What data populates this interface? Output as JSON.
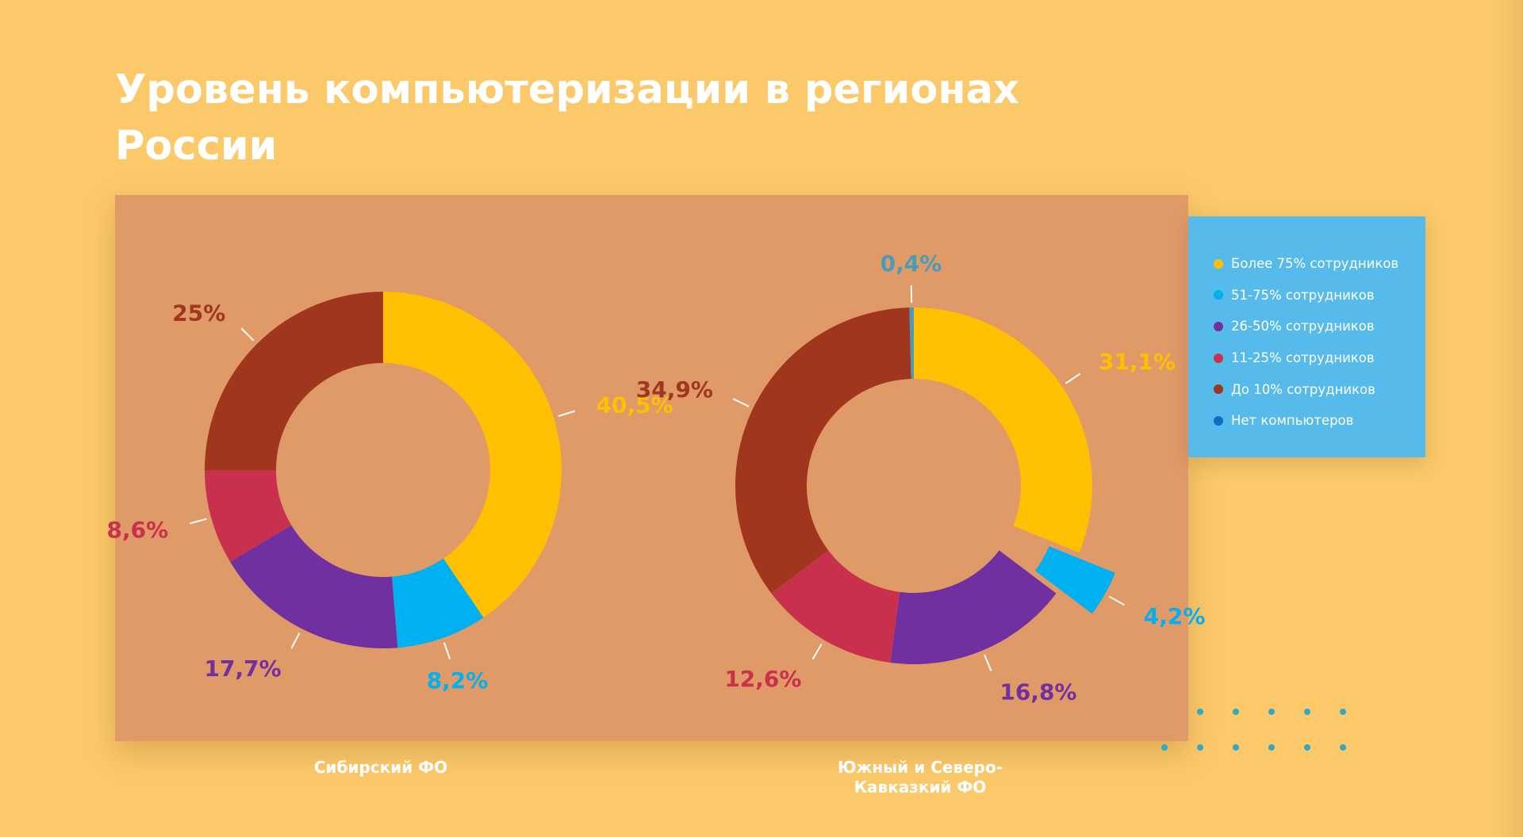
{
  "title": "Уровень компьютеризации в регионах России",
  "colors": {
    "background": "#fbc96a",
    "panel": "#e09a67",
    "legend_panel": "#56bbea"
  },
  "legend": [
    {
      "label": "Более 75% сотрудников",
      "color": "#fec000"
    },
    {
      "label": "51-75% сотрудников",
      "color": "#00b0f0"
    },
    {
      "label": "26-50% сотрудников",
      "color": "#7030a0"
    },
    {
      "label": "11-25% сотрудников",
      "color": "#c9304e"
    },
    {
      "label": "До 10% сотрудников",
      "color": "#a0361e"
    },
    {
      "label": "Нет компьютеров",
      "color": "#0f6fc6"
    }
  ],
  "chart_data": [
    {
      "type": "pie",
      "title": "Сибирский ФО",
      "categories": [
        "Более 75% сотрудников",
        "51-75% сотрудников",
        "26-50% сотрудников",
        "11-25% сотрудников",
        "До 10% сотрудников"
      ],
      "values": [
        40.5,
        8.2,
        17.7,
        8.6,
        25
      ],
      "labels": [
        "40,5%",
        "8,2%",
        "17,7%",
        "8,6%",
        "25%"
      ],
      "colors": [
        "#fec000",
        "#00b0f0",
        "#7030a0",
        "#c9304e",
        "#a0361e"
      ],
      "donut": true
    },
    {
      "type": "pie",
      "title": "Южный и Северо-Кавказкий ФО",
      "categories": [
        "Более 75% сотрудников",
        "51-75% сотрудников",
        "26-50% сотрудников",
        "11-25% сотрудников",
        "До 10% сотрудников",
        "Нет компьютеров"
      ],
      "values": [
        31.1,
        4.2,
        16.8,
        12.6,
        34.9,
        0.4
      ],
      "labels": [
        "31,1%",
        "4,2%",
        "16,8%",
        "12,6%",
        "34,9%",
        "0,4%"
      ],
      "colors": [
        "#fec000",
        "#00b0f0",
        "#7030a0",
        "#c9304e",
        "#a0361e",
        "#4a9bb8"
      ],
      "exploded": [
        "51-75% сотрудников"
      ],
      "donut": true
    }
  ]
}
